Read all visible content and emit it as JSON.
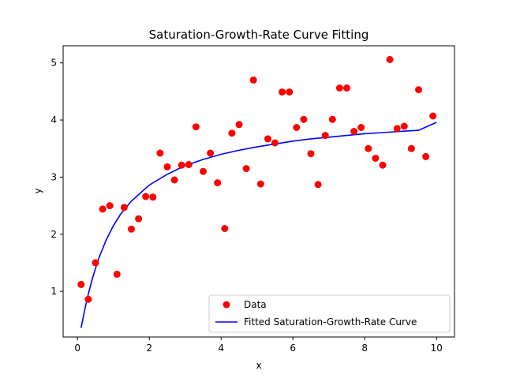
{
  "chart_data": {
    "type": "scatter",
    "title": "Saturation-Growth-Rate Curve Fitting",
    "xlabel": "x",
    "ylabel": "y",
    "xlim": [
      -0.4,
      10.5
    ],
    "ylim": [
      0.2,
      5.3
    ],
    "xticks": [
      0,
      2,
      4,
      6,
      8,
      10
    ],
    "yticks": [
      1,
      2,
      3,
      4,
      5
    ],
    "grid": false,
    "legend_position": "lower-right",
    "series": [
      {
        "name": "Data",
        "kind": "scatter",
        "color": "#ff0000",
        "x": [
          0.1,
          0.3,
          0.5,
          0.7,
          0.9,
          1.1,
          1.3,
          1.5,
          1.7,
          1.9,
          2.1,
          2.3,
          2.5,
          2.7,
          2.9,
          3.1,
          3.3,
          3.5,
          3.7,
          3.9,
          4.1,
          4.3,
          4.5,
          4.7,
          4.9,
          5.1,
          5.3,
          5.5,
          5.7,
          5.9,
          6.1,
          6.3,
          6.5,
          6.7,
          6.9,
          7.1,
          7.3,
          7.5,
          7.7,
          7.9,
          8.1,
          8.3,
          8.5,
          8.7,
          8.9,
          9.1,
          9.3,
          9.5,
          9.7,
          9.9
        ],
        "y": [
          1.12,
          0.86,
          1.5,
          2.44,
          2.5,
          1.3,
          2.47,
          2.09,
          2.27,
          2.66,
          2.65,
          3.42,
          3.18,
          2.95,
          3.21,
          3.22,
          3.88,
          3.1,
          3.42,
          2.9,
          2.1,
          3.77,
          3.92,
          3.15,
          4.7,
          2.88,
          3.67,
          3.6,
          4.49,
          4.49,
          3.87,
          4.01,
          3.41,
          2.87,
          3.73,
          4.01,
          4.56,
          4.56,
          3.8,
          3.87,
          3.5,
          3.33,
          3.21,
          5.06,
          3.85,
          3.89,
          3.5,
          4.53,
          3.36,
          4.07
        ]
      },
      {
        "name": "Fitted Saturation-Growth-Rate Curve",
        "kind": "line",
        "color": "#0000ff",
        "x": [
          0.1,
          0.2,
          0.3,
          0.4,
          0.5,
          0.6,
          0.8,
          1.0,
          1.2,
          1.5,
          2.0,
          2.5,
          3.0,
          3.5,
          4.0,
          4.5,
          5.0,
          5.5,
          6.0,
          6.5,
          7.0,
          7.5,
          8.0,
          8.5,
          9.0,
          9.5,
          10.0
        ],
        "y": [
          0.36,
          0.67,
          0.95,
          1.19,
          1.4,
          1.59,
          1.9,
          2.15,
          2.35,
          2.58,
          2.86,
          3.05,
          3.2,
          3.31,
          3.4,
          3.47,
          3.53,
          3.58,
          3.63,
          3.67,
          3.7,
          3.73,
          3.76,
          3.78,
          3.8,
          3.82,
          3.96
        ]
      }
    ]
  }
}
